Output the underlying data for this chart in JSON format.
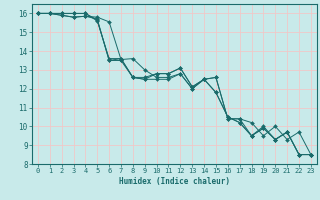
{
  "title": "",
  "xlabel": "Humidex (Indice chaleur)",
  "ylabel": "",
  "bg_color": "#c8eaea",
  "grid_color": "#f0c8c8",
  "line_color": "#1a6b6b",
  "xlim": [
    -0.5,
    23.5
  ],
  "ylim": [
    8,
    16.5
  ],
  "xticks": [
    0,
    1,
    2,
    3,
    4,
    5,
    6,
    7,
    8,
    9,
    10,
    11,
    12,
    13,
    14,
    15,
    16,
    17,
    18,
    19,
    20,
    21,
    22,
    23
  ],
  "yticks": [
    8,
    9,
    10,
    11,
    12,
    13,
    14,
    15,
    16
  ],
  "series": [
    {
      "x": [
        0,
        1,
        2,
        3,
        4,
        5,
        6,
        7,
        8,
        9,
        10,
        11,
        12,
        13,
        14,
        15,
        16,
        17,
        18,
        19,
        20,
        21,
        22,
        23
      ],
      "y": [
        16,
        16,
        16,
        16,
        16,
        15.65,
        13.5,
        13.5,
        12.6,
        12.5,
        12.8,
        12.8,
        13.1,
        12.1,
        12.5,
        12.6,
        10.4,
        10.4,
        9.5,
        10.0,
        9.3,
        9.7,
        8.5,
        8.5
      ]
    },
    {
      "x": [
        0,
        1,
        2,
        3,
        4,
        5,
        6,
        7,
        8,
        9,
        10,
        11,
        12,
        13,
        14,
        15,
        16,
        17,
        18,
        19,
        20,
        21,
        22,
        23
      ],
      "y": [
        16,
        16,
        15.9,
        15.8,
        15.85,
        15.8,
        15.55,
        13.55,
        13.6,
        13.0,
        12.6,
        12.6,
        12.8,
        12.0,
        12.5,
        11.8,
        10.5,
        10.2,
        9.5,
        9.9,
        9.3,
        9.7,
        8.5,
        8.5
      ]
    },
    {
      "x": [
        0,
        1,
        2,
        3,
        4,
        5,
        6,
        7,
        8,
        9,
        10,
        11,
        12,
        13,
        14,
        15,
        16,
        17,
        18,
        19,
        20,
        21,
        22,
        23
      ],
      "y": [
        16,
        16,
        15.9,
        15.8,
        15.85,
        15.7,
        13.5,
        13.6,
        12.6,
        12.5,
        12.5,
        12.5,
        12.8,
        12.0,
        12.5,
        11.8,
        10.5,
        10.2,
        9.5,
        9.9,
        9.3,
        9.7,
        8.5,
        8.5
      ]
    },
    {
      "x": [
        0,
        1,
        2,
        3,
        4,
        5,
        6,
        7,
        8,
        9,
        10,
        11,
        12,
        13,
        14,
        15,
        16,
        17,
        18,
        19,
        20,
        21,
        22,
        23
      ],
      "y": [
        16,
        16,
        16,
        16,
        16,
        15.6,
        13.6,
        13.6,
        12.6,
        12.6,
        12.8,
        12.8,
        13.1,
        12.1,
        12.5,
        12.6,
        10.4,
        10.4,
        10.2,
        9.5,
        10.0,
        9.3,
        9.7,
        8.5
      ]
    }
  ]
}
